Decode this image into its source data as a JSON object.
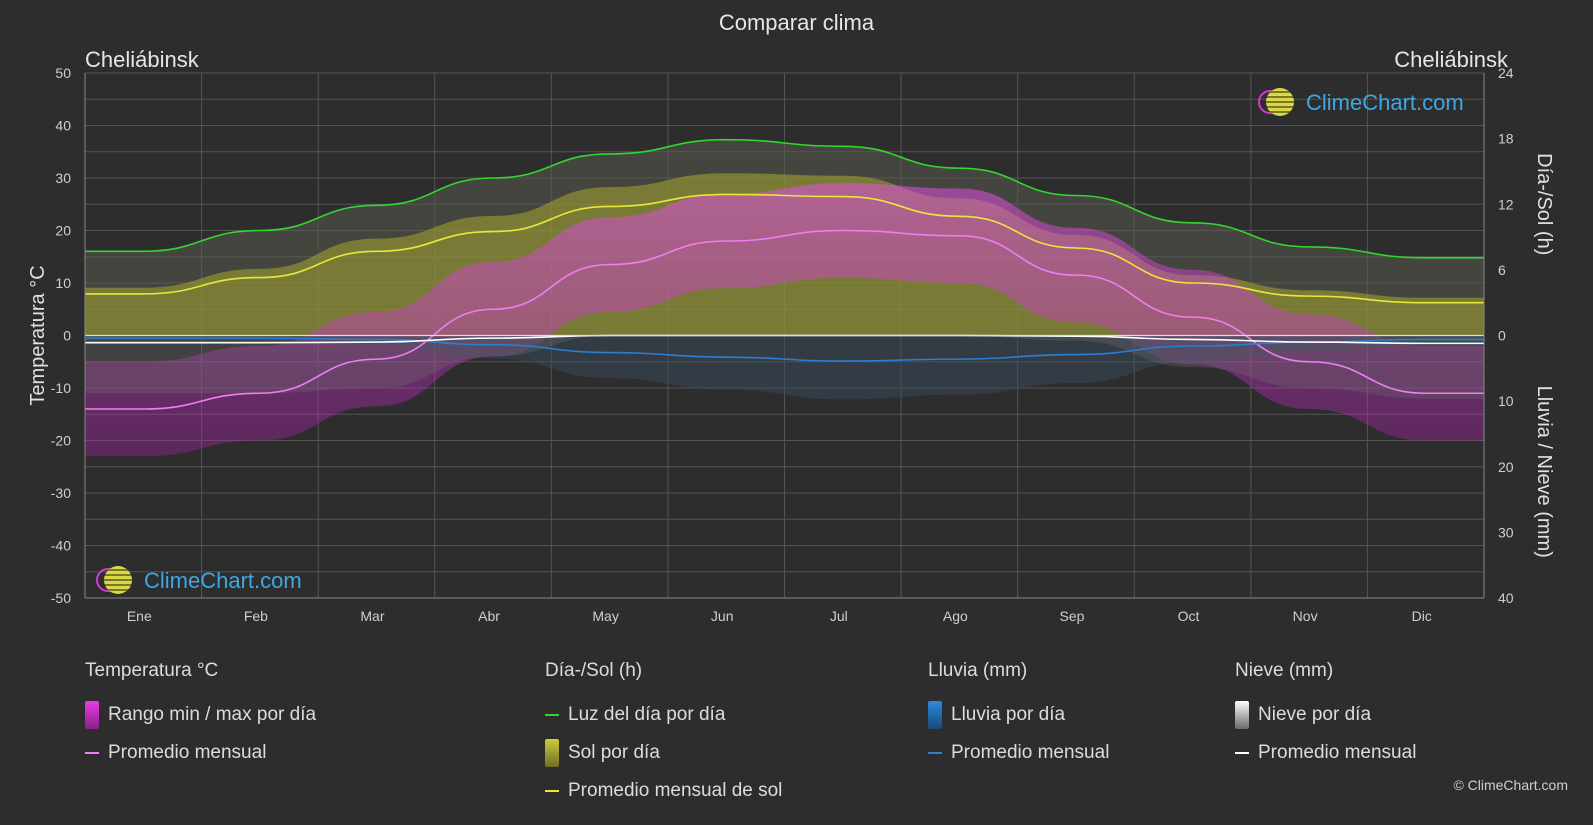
{
  "title": "Comparar clima",
  "city_left": "Cheliábinsk",
  "city_right": "Cheliábinsk",
  "logo_text": "ClimeChart.com",
  "copyright": "© ClimeChart.com",
  "colors": {
    "background": "#2d2d2d",
    "daylight": "#33d62f",
    "sun_avg": "#e8e83a",
    "sun_fill": "#a6a630",
    "temp_avg": "#f07ef0",
    "temp_range": "#d43ad6",
    "rain": "#2a7fd0",
    "snow": "#ffffff",
    "logo_text": "#3fa7e0"
  },
  "chart_data": {
    "type": "line",
    "categories": [
      "Ene",
      "Feb",
      "Mar",
      "Abr",
      "May",
      "Jun",
      "Jul",
      "Ago",
      "Sep",
      "Oct",
      "Nov",
      "Dic"
    ],
    "left_axis": {
      "label": "Temperatura °C",
      "ylim": [
        -50,
        50
      ],
      "ticks": [
        "50",
        "40",
        "30",
        "20",
        "10",
        "0",
        "-10",
        "-20",
        "-30",
        "-40",
        "-50"
      ]
    },
    "right_axis_top": {
      "label": "Día-/Sol (h)",
      "ylim": [
        0,
        24
      ],
      "ticks": [
        "24",
        "18",
        "12",
        "6",
        "0"
      ]
    },
    "right_axis_bottom": {
      "label": "Lluvia / Nieve (mm)",
      "ylim": [
        0,
        40
      ],
      "ticks": [
        "10",
        "20",
        "30",
        "40"
      ]
    },
    "grid": true,
    "series": [
      {
        "name": "Luz del día por día",
        "axis": "sun_hours",
        "values": [
          7.7,
          9.6,
          11.9,
          14.4,
          16.6,
          17.9,
          17.3,
          15.3,
          12.8,
          10.3,
          8.1,
          7.1
        ]
      },
      {
        "name": "Promedio mensual de sol",
        "axis": "sun_hours",
        "values": [
          3.8,
          5.3,
          7.7,
          9.5,
          11.8,
          12.9,
          12.7,
          10.9,
          8.0,
          4.8,
          3.6,
          3.0
        ]
      },
      {
        "name": "Promedio mensual",
        "axis": "temperature_c",
        "values": [
          -14,
          -11,
          -4.5,
          5,
          13.5,
          18,
          20,
          19,
          11.5,
          3.5,
          -5,
          -11
        ]
      },
      {
        "name": "Promedio mensual",
        "axis": "rain_mm",
        "values": [
          0.4,
          0.4,
          0.6,
          1.4,
          2.6,
          3.3,
          3.9,
          3.6,
          2.9,
          1.6,
          1.0,
          0.6
        ]
      },
      {
        "name": "Promedio mensual",
        "axis": "snow_mm",
        "values": [
          1.1,
          1.1,
          1.0,
          0.4,
          0.0,
          0.0,
          0.0,
          0.0,
          0.1,
          0.6,
          1.0,
          1.2
        ]
      }
    ],
    "legend_placement": "bottom"
  },
  "legend": {
    "temp": {
      "header": "Temperatura °C",
      "range": "Rango min / max por día",
      "avg": "Promedio mensual"
    },
    "sun": {
      "header": "Día-/Sol (h)",
      "daylight": "Luz del día por día",
      "sun": "Sol por día",
      "sun_avg": "Promedio mensual de sol"
    },
    "rain": {
      "header": "Lluvia (mm)",
      "day": "Lluvia por día",
      "avg": "Promedio mensual"
    },
    "snow": {
      "header": "Nieve (mm)",
      "day": "Nieve por día",
      "avg": "Promedio mensual"
    }
  }
}
